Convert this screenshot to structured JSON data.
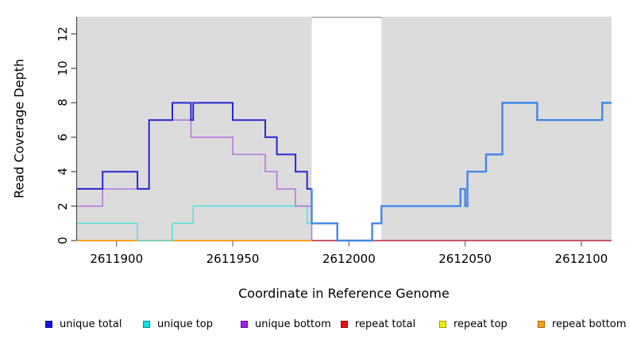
{
  "figure": {
    "xlabel": "Coordinate in Reference Genome",
    "ylabel": "Read Coverage Depth"
  },
  "chart_data": {
    "type": "line",
    "style": "step coverage-depth plot (R base graphics look)",
    "title": "",
    "xlabel": "Coordinate in Reference Genome",
    "ylabel": "Read Coverage Depth",
    "x_domain": [
      2611883,
      2612113
    ],
    "y_domain": [
      0,
      13
    ],
    "x_ticks": [
      2611900,
      2611950,
      2612000,
      2612050,
      2612100
    ],
    "y_ticks": [
      0,
      2,
      4,
      6,
      8,
      10,
      12
    ],
    "grid": false,
    "legend_position": "bottom",
    "background": {
      "plot_color": "#FFFFFF",
      "shaded_color": "#DCDCDC",
      "shaded_regions": [
        [
          2611883,
          2611984
        ],
        [
          2612014,
          2612113
        ]
      ],
      "unshaded_gap": [
        2611984,
        2612014
      ],
      "gap_top_border_color": "#A9A9A9"
    },
    "series": [
      {
        "key": "repeat-top",
        "legend_label": "repeat top",
        "color": "#F0F000",
        "width": 1.6,
        "note": "zero across window, hidden beneath repeat total/bottom lines",
        "points": [
          [
            2611883,
            0
          ],
          [
            2612113,
            0
          ]
        ]
      },
      {
        "key": "repeat-total",
        "legend_label": "repeat total",
        "color": "#C84468",
        "width": 1.8,
        "note": "zero across window; visible (blended with unique bottom) right of 2611984",
        "points": [
          [
            2611883,
            0
          ],
          [
            2612113,
            0
          ]
        ]
      },
      {
        "key": "repeat-bottom",
        "legend_label": "repeat bottom",
        "color": "#FFA41E",
        "width": 1.8,
        "note": "zero, visible from left edge to 2611984",
        "points": [
          [
            2611883,
            0
          ],
          [
            2611984,
            0
          ]
        ]
      },
      {
        "key": "unique-top",
        "legend_label": "unique top",
        "color": "#5CDEDE",
        "width": 1.6,
        "points": [
          [
            2611883,
            1
          ],
          [
            2611909,
            0
          ],
          [
            2611924,
            1
          ],
          [
            2611933,
            2
          ],
          [
            2611982,
            1
          ],
          [
            2611984,
            1
          ]
        ]
      },
      {
        "key": "unique-bottom",
        "legend_label": "unique bottom",
        "color": "#B47ADC",
        "width": 1.6,
        "points": [
          [
            2611883,
            2
          ],
          [
            2611894,
            3
          ],
          [
            2611914,
            7
          ],
          [
            2611932,
            6
          ],
          [
            2611950,
            5
          ],
          [
            2611964,
            4
          ],
          [
            2611969,
            3
          ],
          [
            2611977,
            2
          ],
          [
            2611984,
            0
          ]
        ]
      },
      {
        "key": "unique-total-left",
        "legend_label": "unique total",
        "color": "#2828D2",
        "width": 2,
        "points": [
          [
            2611883,
            3
          ],
          [
            2611894,
            4
          ],
          [
            2611909,
            3
          ],
          [
            2611914,
            7
          ],
          [
            2611924,
            8
          ],
          [
            2611932,
            7
          ],
          [
            2611933,
            8
          ],
          [
            2611950,
            7
          ],
          [
            2611964,
            6
          ],
          [
            2611969,
            5
          ],
          [
            2611977,
            4
          ],
          [
            2611982,
            3
          ],
          [
            2611984,
            3
          ]
        ]
      },
      {
        "key": "unique-total-right",
        "legend_label": "unique total",
        "color": "#4287E8",
        "width": 2.4,
        "note": "total coincides with unique top here (bottom=0), rendered as lighter blended blue",
        "points": [
          [
            2611984,
            3
          ],
          [
            2611984,
            1
          ],
          [
            2611995,
            0
          ],
          [
            2612010,
            1
          ],
          [
            2612014,
            2
          ],
          [
            2612048,
            3
          ],
          [
            2612050,
            2
          ],
          [
            2612051,
            4
          ],
          [
            2612059,
            5
          ],
          [
            2612066,
            8
          ],
          [
            2612081,
            7
          ],
          [
            2612109,
            8
          ],
          [
            2612113,
            8
          ]
        ]
      }
    ],
    "legend": {
      "items": [
        {
          "label": "unique total",
          "color": "#1414E8"
        },
        {
          "label": "unique top",
          "color": "#00E0E0"
        },
        {
          "label": "unique bottom",
          "color": "#A020F0"
        },
        {
          "label": "repeat total",
          "color": "#EE1111"
        },
        {
          "label": "repeat top",
          "color": "#F0F000"
        },
        {
          "label": "repeat bottom",
          "color": "#FFA010"
        }
      ]
    }
  }
}
